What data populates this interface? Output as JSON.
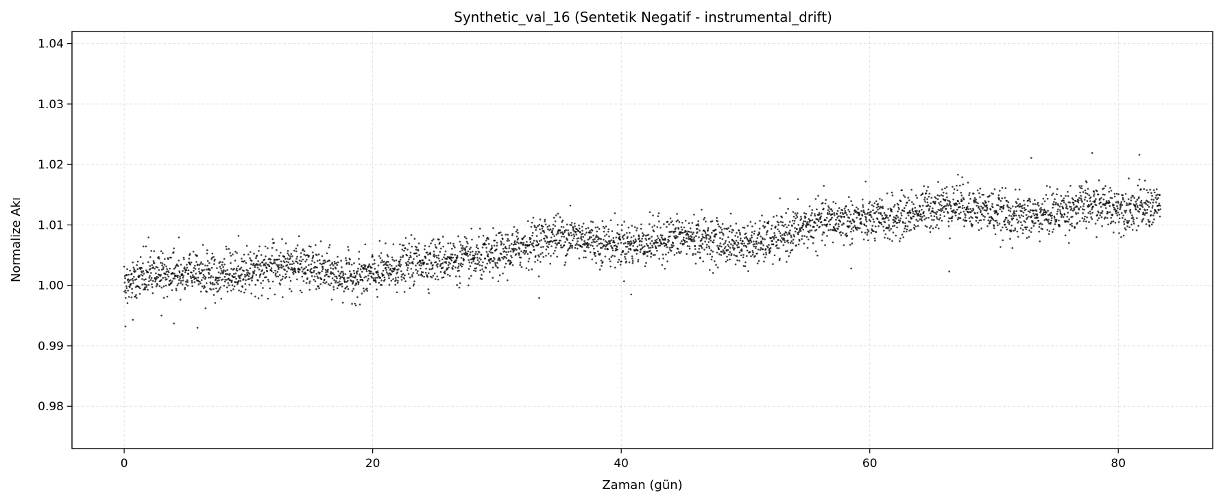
{
  "chart_data": {
    "type": "scatter",
    "title": "Synthetic_val_16 (Sentetik Negatif - instrumental_drift)",
    "xlabel": "Zaman (gün)",
    "ylabel": "Normalize Akı",
    "xlim": [
      -4.2,
      87.6
    ],
    "ylim": [
      0.973,
      1.042
    ],
    "xticks": [
      0,
      20,
      40,
      60,
      80
    ],
    "xtick_labels": [
      "0",
      "20",
      "40",
      "60",
      "80"
    ],
    "yticks": [
      0.98,
      0.99,
      1.0,
      1.01,
      1.02,
      1.03,
      1.04
    ],
    "ytick_labels": [
      "0.98",
      "0.99",
      "1.00",
      "1.01",
      "1.02",
      "1.03",
      "1.04"
    ],
    "grid": true,
    "legend": "none",
    "colors": {
      "points": "#000000",
      "grid": "#b0b0b0",
      "axes": "#000000"
    },
    "series": [
      {
        "x_start": 0,
        "x_end": 83.4,
        "x_step": 0.0204,
        "y_start": 1.0,
        "y_end": 1.0145,
        "noise": 0.0025,
        "outliers": [
          {
            "x": 0.1,
            "y": 0.9932
          },
          {
            "x": 5.9,
            "y": 0.993
          },
          {
            "x": 4.0,
            "y": 0.9937
          },
          {
            "x": 3.0,
            "y": 0.995
          },
          {
            "x": 0.7,
            "y": 0.9943
          },
          {
            "x": 9.2,
            "y": 1.0082
          },
          {
            "x": 35.9,
            "y": 1.0132
          },
          {
            "x": 34.7,
            "y": 1.0106
          },
          {
            "x": 40.8,
            "y": 0.9985
          },
          {
            "x": 66.4,
            "y": 1.0023
          },
          {
            "x": 67.1,
            "y": 1.0183
          },
          {
            "x": 73.0,
            "y": 1.0211
          },
          {
            "x": 77.9,
            "y": 1.0219
          },
          {
            "x": 81.7,
            "y": 1.0216
          },
          {
            "x": 58.5,
            "y": 1.0028
          },
          {
            "x": 33.4,
            "y": 0.9979
          }
        ]
      }
    ]
  }
}
